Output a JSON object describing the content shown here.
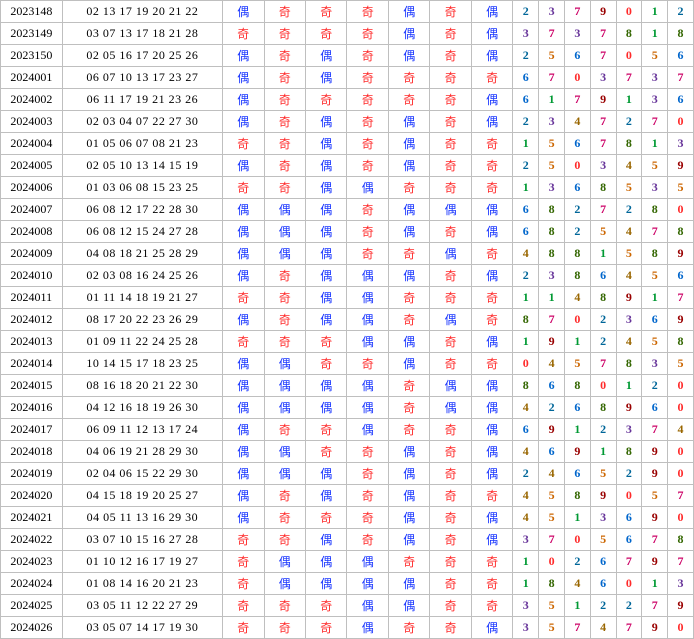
{
  "parity_labels": {
    "even": "偶",
    "odd": "奇"
  },
  "parity_colors": {
    "even": "#1a36ff",
    "odd": "#ff2a2a"
  },
  "digit_palette": [
    "#ff2a2a",
    "#009933",
    "#006699",
    "#663399",
    "#996600",
    "#cc6600",
    "#0066cc",
    "#cc0066",
    "#336600",
    "#990000"
  ],
  "rows": [
    {
      "id": "2023148",
      "nums": "02 13 17 19 20 21 22",
      "par": [
        "even",
        "odd",
        "odd",
        "odd",
        "even",
        "odd",
        "even"
      ],
      "digs": [
        2,
        3,
        7,
        9,
        0,
        1,
        2
      ]
    },
    {
      "id": "2023149",
      "nums": "03 07 13 17 18 21 28",
      "par": [
        "odd",
        "odd",
        "odd",
        "odd",
        "even",
        "odd",
        "even"
      ],
      "digs": [
        3,
        7,
        3,
        7,
        8,
        1,
        8
      ]
    },
    {
      "id": "2023150",
      "nums": "02 05 16 17 20 25 26",
      "par": [
        "even",
        "odd",
        "even",
        "odd",
        "even",
        "odd",
        "even"
      ],
      "digs": [
        2,
        5,
        6,
        7,
        0,
        5,
        6
      ]
    },
    {
      "id": "2024001",
      "nums": "06 07 10 13 17 23 27",
      "par": [
        "even",
        "odd",
        "even",
        "odd",
        "odd",
        "odd",
        "odd"
      ],
      "digs": [
        6,
        7,
        0,
        3,
        7,
        3,
        7
      ]
    },
    {
      "id": "2024002",
      "nums": "06 11 17 19 21 23 26",
      "par": [
        "even",
        "odd",
        "odd",
        "odd",
        "odd",
        "odd",
        "even"
      ],
      "digs": [
        6,
        1,
        7,
        9,
        1,
        3,
        6
      ]
    },
    {
      "id": "2024003",
      "nums": "02 03 04 07 22 27 30",
      "par": [
        "even",
        "odd",
        "even",
        "odd",
        "even",
        "odd",
        "even"
      ],
      "digs": [
        2,
        3,
        4,
        7,
        2,
        7,
        0
      ]
    },
    {
      "id": "2024004",
      "nums": "01 05 06 07 08 21 23",
      "par": [
        "odd",
        "odd",
        "even",
        "odd",
        "even",
        "odd",
        "odd"
      ],
      "digs": [
        1,
        5,
        6,
        7,
        8,
        1,
        3
      ]
    },
    {
      "id": "2024005",
      "nums": "02 05 10 13 14 15 19",
      "par": [
        "even",
        "odd",
        "even",
        "odd",
        "even",
        "odd",
        "odd"
      ],
      "digs": [
        2,
        5,
        0,
        3,
        4,
        5,
        9
      ]
    },
    {
      "id": "2024006",
      "nums": "01 03 06 08 15 23 25",
      "par": [
        "odd",
        "odd",
        "even",
        "even",
        "odd",
        "odd",
        "odd"
      ],
      "digs": [
        1,
        3,
        6,
        8,
        5,
        3,
        5
      ]
    },
    {
      "id": "2024007",
      "nums": "06 08 12 17 22 28 30",
      "par": [
        "even",
        "even",
        "even",
        "odd",
        "even",
        "even",
        "even"
      ],
      "digs": [
        6,
        8,
        2,
        7,
        2,
        8,
        0
      ]
    },
    {
      "id": "2024008",
      "nums": "06 08 12 15 24 27 28",
      "par": [
        "even",
        "even",
        "even",
        "odd",
        "even",
        "odd",
        "even"
      ],
      "digs": [
        6,
        8,
        2,
        5,
        4,
        7,
        8
      ]
    },
    {
      "id": "2024009",
      "nums": "04 08 18 21 25 28 29",
      "par": [
        "even",
        "even",
        "even",
        "odd",
        "odd",
        "even",
        "odd"
      ],
      "digs": [
        4,
        8,
        8,
        1,
        5,
        8,
        9
      ]
    },
    {
      "id": "2024010",
      "nums": "02 03 08 16 24 25 26",
      "par": [
        "even",
        "odd",
        "even",
        "even",
        "even",
        "odd",
        "even"
      ],
      "digs": [
        2,
        3,
        8,
        6,
        4,
        5,
        6
      ]
    },
    {
      "id": "2024011",
      "nums": "01 11 14 18 19 21 27",
      "par": [
        "odd",
        "odd",
        "even",
        "even",
        "odd",
        "odd",
        "odd"
      ],
      "digs": [
        1,
        1,
        4,
        8,
        9,
        1,
        7
      ]
    },
    {
      "id": "2024012",
      "nums": "08 17 20 22 23 26 29",
      "par": [
        "even",
        "odd",
        "even",
        "even",
        "odd",
        "even",
        "odd"
      ],
      "digs": [
        8,
        7,
        0,
        2,
        3,
        6,
        9
      ]
    },
    {
      "id": "2024013",
      "nums": "01 09 11 22 24 25 28",
      "par": [
        "odd",
        "odd",
        "odd",
        "even",
        "even",
        "odd",
        "even"
      ],
      "digs": [
        1,
        9,
        1,
        2,
        4,
        5,
        8
      ]
    },
    {
      "id": "2024014",
      "nums": "10 14 15 17 18 23 25",
      "par": [
        "even",
        "even",
        "odd",
        "odd",
        "even",
        "odd",
        "odd"
      ],
      "digs": [
        0,
        4,
        5,
        7,
        8,
        3,
        5
      ]
    },
    {
      "id": "2024015",
      "nums": "08 16 18 20 21 22 30",
      "par": [
        "even",
        "even",
        "even",
        "even",
        "odd",
        "even",
        "even"
      ],
      "digs": [
        8,
        6,
        8,
        0,
        1,
        2,
        0
      ]
    },
    {
      "id": "2024016",
      "nums": "04 12 16 18 19 26 30",
      "par": [
        "even",
        "even",
        "even",
        "even",
        "odd",
        "even",
        "even"
      ],
      "digs": [
        4,
        2,
        6,
        8,
        9,
        6,
        0
      ]
    },
    {
      "id": "2024017",
      "nums": "06 09 11 12 13 17 24",
      "par": [
        "even",
        "odd",
        "odd",
        "even",
        "odd",
        "odd",
        "even"
      ],
      "digs": [
        6,
        9,
        1,
        2,
        3,
        7,
        4
      ]
    },
    {
      "id": "2024018",
      "nums": "04 06 19 21 28 29 30",
      "par": [
        "even",
        "even",
        "odd",
        "odd",
        "even",
        "odd",
        "even"
      ],
      "digs": [
        4,
        6,
        9,
        1,
        8,
        9,
        0
      ]
    },
    {
      "id": "2024019",
      "nums": "02 04 06 15 22 29 30",
      "par": [
        "even",
        "even",
        "even",
        "odd",
        "even",
        "odd",
        "even"
      ],
      "digs": [
        2,
        4,
        6,
        5,
        2,
        9,
        0
      ]
    },
    {
      "id": "2024020",
      "nums": "04 15 18 19 20 25 27",
      "par": [
        "even",
        "odd",
        "even",
        "odd",
        "even",
        "odd",
        "odd"
      ],
      "digs": [
        4,
        5,
        8,
        9,
        0,
        5,
        7
      ]
    },
    {
      "id": "2024021",
      "nums": "04 05 11 13 16 29 30",
      "par": [
        "even",
        "odd",
        "odd",
        "odd",
        "even",
        "odd",
        "even"
      ],
      "digs": [
        4,
        5,
        1,
        3,
        6,
        9,
        0
      ]
    },
    {
      "id": "2024022",
      "nums": "03 07 10 15 16 27 28",
      "par": [
        "odd",
        "odd",
        "even",
        "odd",
        "even",
        "odd",
        "even"
      ],
      "digs": [
        3,
        7,
        0,
        5,
        6,
        7,
        8
      ]
    },
    {
      "id": "2024023",
      "nums": "01 10 12 16 17 19 27",
      "par": [
        "odd",
        "even",
        "even",
        "even",
        "odd",
        "odd",
        "odd"
      ],
      "digs": [
        1,
        0,
        2,
        6,
        7,
        9,
        7
      ]
    },
    {
      "id": "2024024",
      "nums": "01 08 14 16 20 21 23",
      "par": [
        "odd",
        "even",
        "even",
        "even",
        "even",
        "odd",
        "odd"
      ],
      "digs": [
        1,
        8,
        4,
        6,
        0,
        1,
        3
      ]
    },
    {
      "id": "2024025",
      "nums": "03 05 11 12 22 27 29",
      "par": [
        "odd",
        "odd",
        "odd",
        "even",
        "even",
        "odd",
        "odd"
      ],
      "digs": [
        3,
        5,
        1,
        2,
        2,
        7,
        9
      ]
    },
    {
      "id": "2024026",
      "nums": "03 05 07 14 17 19 30",
      "par": [
        "odd",
        "odd",
        "odd",
        "even",
        "odd",
        "odd",
        "even"
      ],
      "digs": [
        3,
        5,
        7,
        4,
        7,
        9,
        0
      ]
    }
  ]
}
